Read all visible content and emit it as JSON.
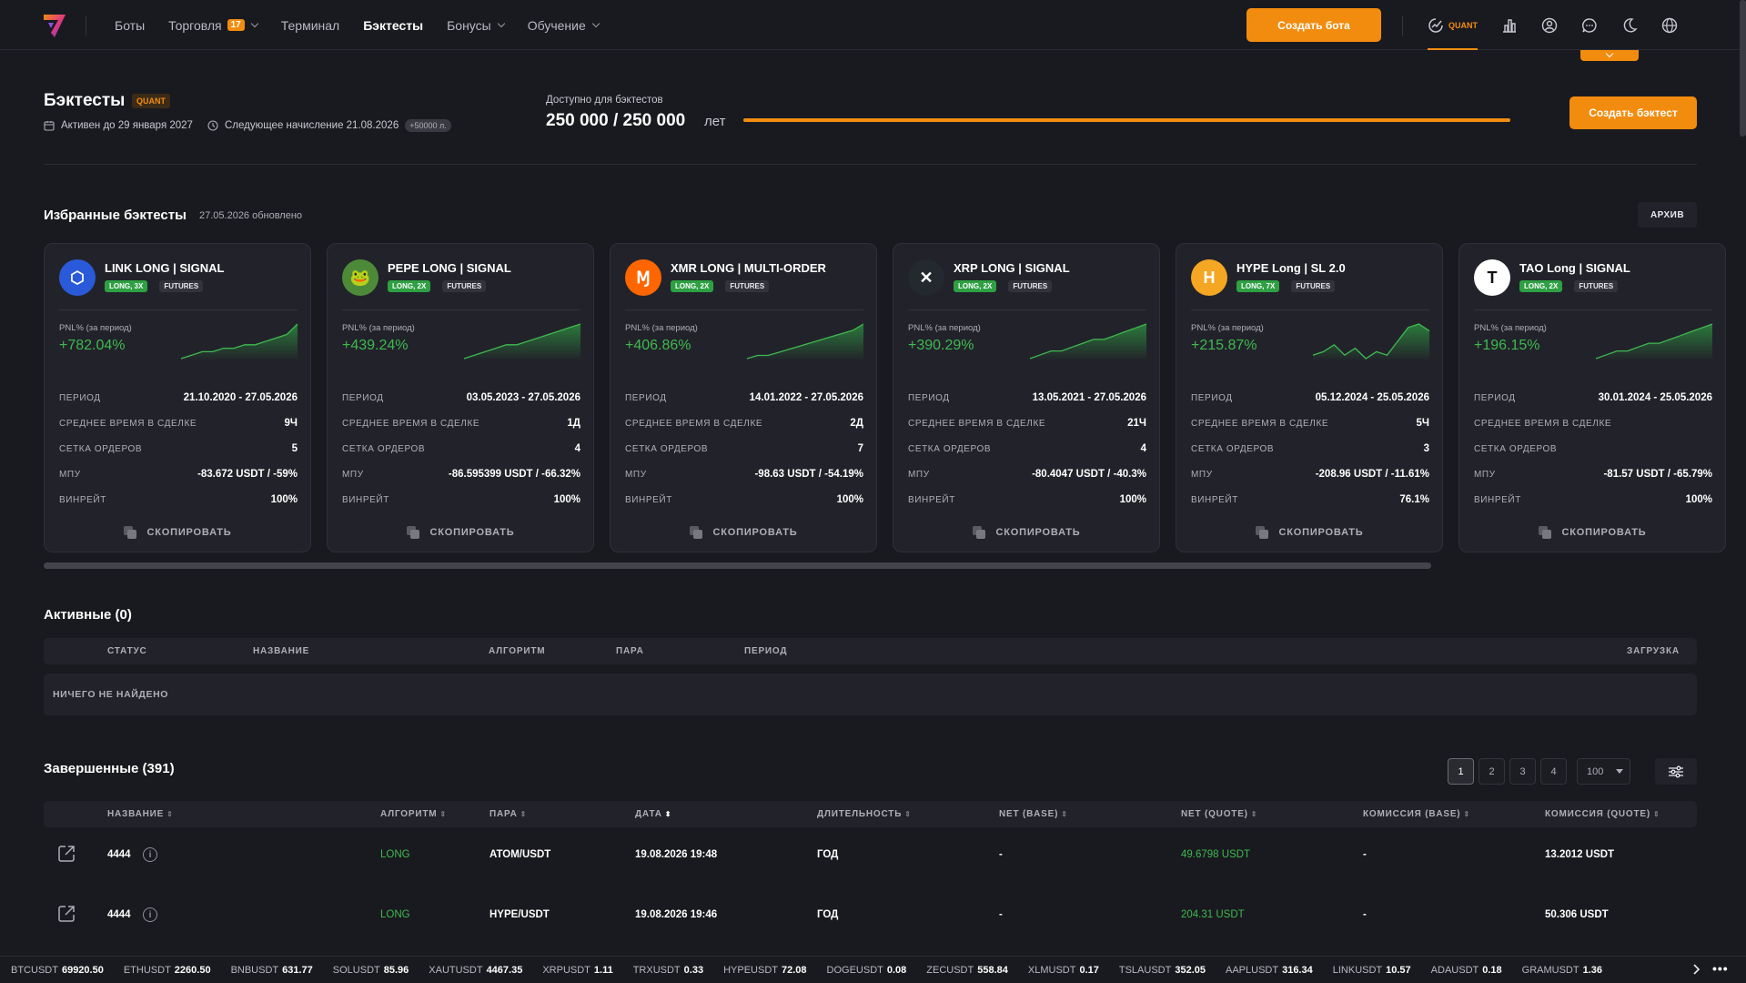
{
  "nav": {
    "items": [
      {
        "label": "Боты",
        "has_chevron": false,
        "active": false
      },
      {
        "label": "Торговля",
        "badge": "17",
        "has_chevron": true,
        "active": false
      },
      {
        "label": "Терминал",
        "has_chevron": false,
        "active": false
      },
      {
        "label": "Бэктесты",
        "has_chevron": false,
        "active": true
      },
      {
        "label": "Бонусы",
        "has_chevron": true,
        "active": false
      },
      {
        "label": "Обучение",
        "has_chevron": true,
        "active": false
      }
    ],
    "create_bot": "Создать бота",
    "quant_label": "QUANT",
    "icons": [
      "analytics-icon",
      "user-icon",
      "chat-icon",
      "moon-icon",
      "globe-icon"
    ]
  },
  "header": {
    "title": "Бэктесты",
    "badge": "QUANT",
    "active_until": "Активен до 29 января 2027",
    "next_credit": "Следующее начисление 21.08.2026",
    "credit_amount": "+50000 л.",
    "available_label": "Доступно для бэктестов",
    "available_value": "250 000 / 250 000",
    "available_unit": "лет",
    "available_fraction": 1.0,
    "create_backtest": "Создать бэктест"
  },
  "favorites": {
    "title": "Избранные бэктесты",
    "updated": "27.05.2026 обновлено",
    "archive": "АРХИВ",
    "row_labels": {
      "period": "ПЕРИОД",
      "avg_time": "СРЕДНЕЕ ВРЕМЯ В СДЕЛКЕ",
      "grid": "СЕТКА ОРДЕРОВ",
      "mpu": "МПУ",
      "winrate": "ВИНРЕЙТ"
    },
    "copy_label": "СКОПИРОВАТЬ",
    "cards": [
      {
        "name": "LINK LONG | SIGNAL",
        "tag": "LONG, 3X",
        "market": "FUTURES",
        "coin_color": "#2a5ada",
        "coin_glyph": "⬡",
        "pnl_label": "PNL% (за период)",
        "pnl": "+782.04%",
        "spark": [
          2,
          3,
          4,
          4,
          5,
          5,
          6,
          6,
          7,
          8,
          9,
          12
        ],
        "period": "21.10.2020 - 27.05.2026",
        "avg_time": "9Ч",
        "grid": "5",
        "mpu": "-83.672 USDT / -59%",
        "winrate": "100%"
      },
      {
        "name": "PEPE LONG | SIGNAL",
        "tag": "LONG, 2X",
        "market": "FUTURES",
        "coin_color": "#4c8a3a",
        "coin_glyph": "🐸",
        "pnl_label": "PNL% (за период)",
        "pnl": "+439.24%",
        "spark": [
          1,
          2,
          3,
          4,
          5,
          5,
          6,
          7,
          8,
          9,
          10,
          11
        ],
        "period": "03.05.2023 - 27.05.2026",
        "avg_time": "1Д",
        "grid": "4",
        "mpu": "-86.595399 USDT / -66.32%",
        "winrate": "100%"
      },
      {
        "name": "XMR LONG | MULTI-ORDER",
        "tag": "LONG, 2X",
        "market": "FUTURES",
        "coin_color": "#ff6600",
        "coin_glyph": "Ɱ",
        "pnl_label": "PNL% (за период)",
        "pnl": "+406.86%",
        "spark": [
          1,
          2,
          2,
          3,
          4,
          5,
          6,
          7,
          8,
          9,
          10,
          12
        ],
        "period": "14.01.2022 - 27.05.2026",
        "avg_time": "2Д",
        "grid": "7",
        "mpu": "-98.63 USDT / -54.19%",
        "winrate": "100%"
      },
      {
        "name": "XRP LONG | SIGNAL",
        "tag": "LONG, 2X",
        "market": "FUTURES",
        "coin_color": "#23292f",
        "coin_glyph": "✕",
        "pnl_label": "PNL% (за период)",
        "pnl": "+390.29%",
        "spark": [
          1,
          2,
          3,
          3,
          4,
          5,
          6,
          6,
          7,
          8,
          9,
          10
        ],
        "period": "13.05.2021 - 27.05.2026",
        "avg_time": "21Ч",
        "grid": "4",
        "mpu": "-80.4047 USDT / -40.3%",
        "winrate": "100%"
      },
      {
        "name": "HYPE Long | SL 2.0",
        "tag": "LONG, 7X",
        "market": "FUTURES",
        "coin_color": "#f5a623",
        "coin_glyph": "H",
        "pnl_label": "PNL% (за период)",
        "pnl": "+215.87%",
        "spark": [
          3,
          4,
          6,
          3,
          5,
          2,
          4,
          3,
          7,
          11,
          12,
          10
        ],
        "period": "05.12.2024 - 25.05.2026",
        "avg_time": "5Ч",
        "grid": "3",
        "mpu": "-208.96 USDT / -11.61%",
        "winrate": "76.1%"
      },
      {
        "name": "TAO Long | SIGNAL",
        "tag": "LONG, 2X",
        "market": "FUTURES",
        "coin_color": "#ffffff",
        "coin_glyph": "T",
        "pnl_label": "PNL% (за период)",
        "pnl": "+196.15%",
        "spark": [
          1,
          2,
          3,
          3,
          4,
          5,
          5,
          6,
          7,
          8,
          9,
          10
        ],
        "period": "30.01.2024 - 25.05.2026",
        "avg_time": "",
        "grid": "",
        "mpu": "-81.57 USDT / -65.79%",
        "winrate": "100%"
      }
    ]
  },
  "active": {
    "title": "Активные (0)",
    "columns": [
      "СТАТУС",
      "НАЗВАНИЕ",
      "АЛГОРИТМ",
      "ПАРА",
      "ПЕРИОД",
      "ЗАГРУЗКА"
    ],
    "empty": "НИЧЕГО НЕ НАЙДЕНО"
  },
  "completed": {
    "title": "Завершенные (391)",
    "pages": [
      "1",
      "2",
      "3",
      "4"
    ],
    "page_size": "100",
    "columns": [
      "НАЗВАНИЕ",
      "АЛГОРИТМ",
      "ПАРА",
      "ДАТА",
      "ДЛИТЕЛЬНОСТЬ",
      "NET (BASE)",
      "NET (QUOTE)",
      "КОМИССИЯ (BASE)",
      "КОМИССИЯ (QUOTE)"
    ],
    "rows": [
      {
        "name": "4444",
        "algo": "LONG",
        "pair": "ATOM/USDT",
        "date": "19.08.2026 19:48",
        "duration": "ГОД",
        "net_base": "-",
        "net_quote": "49.6798 USDT",
        "fee_base": "-",
        "fee_quote": "13.2012 USDT"
      },
      {
        "name": "4444",
        "algo": "LONG",
        "pair": "HYPE/USDT",
        "date": "19.08.2026 19:46",
        "duration": "ГОД",
        "net_base": "-",
        "net_quote": "204.31 USDT",
        "fee_base": "-",
        "fee_quote": "50.306 USDT"
      }
    ]
  },
  "ticker": [
    {
      "s": "BTCUSDT",
      "p": "69920.50"
    },
    {
      "s": "ETHUSDT",
      "p": "2260.50"
    },
    {
      "s": "BNBUSDT",
      "p": "631.77"
    },
    {
      "s": "SOLUSDT",
      "p": "85.96"
    },
    {
      "s": "XAUTUSDT",
      "p": "4467.35"
    },
    {
      "s": "XRPUSDT",
      "p": "1.11"
    },
    {
      "s": "TRXUSDT",
      "p": "0.33"
    },
    {
      "s": "HYPEUSDT",
      "p": "72.08"
    },
    {
      "s": "DOGEUSDT",
      "p": "0.08"
    },
    {
      "s": "ZECUSDT",
      "p": "558.84"
    },
    {
      "s": "XLMUSDT",
      "p": "0.17"
    },
    {
      "s": "TSLAUSDT",
      "p": "352.05"
    },
    {
      "s": "AAPLUSDT",
      "p": "316.34"
    },
    {
      "s": "LINKUSDT",
      "p": "10.57"
    },
    {
      "s": "ADAUSDT",
      "p": "0.18"
    },
    {
      "s": "GRAMUSDT",
      "p": "1.36"
    }
  ],
  "colors": {
    "accent": "#f28c0f",
    "positive": "#3fb950",
    "background": "#191a1f",
    "card": "#22232a"
  }
}
